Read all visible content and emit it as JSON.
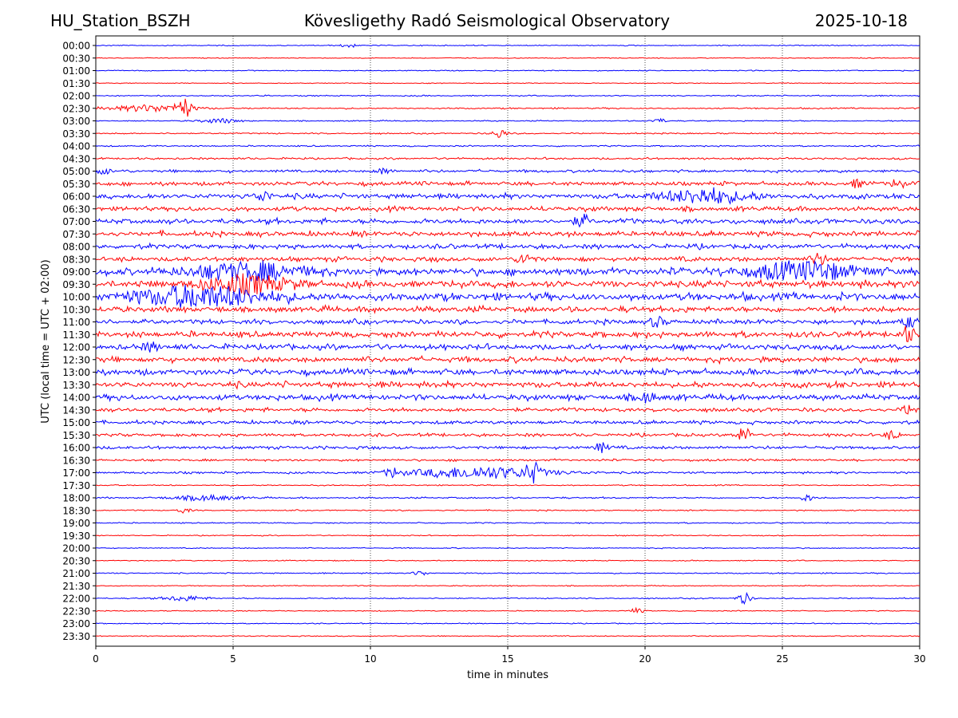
{
  "header": {
    "station": "HU_Station_BSZH",
    "title": "Kövesligethy Radó Seismological Observatory",
    "date": "2025-10-18"
  },
  "chart_data": {
    "type": "line",
    "title": "Kövesligethy Radó Seismological Observatory",
    "xlabel": "time in minutes",
    "ylabel": "UTC (local time = UTC + 02:00)",
    "xlim": [
      0,
      30
    ],
    "xticks": [
      0,
      5,
      10,
      15,
      20,
      25,
      30
    ],
    "xtick_labels": [
      "0",
      "5",
      "10",
      "15",
      "20",
      "25",
      "30"
    ],
    "vertical_gridlines_minutes": [
      5,
      10,
      15,
      20,
      25
    ],
    "grid": "dotted vertical",
    "series_colors": [
      "#0000ff",
      "#ff0000"
    ],
    "rows": [
      "00:00",
      "00:30",
      "01:00",
      "01:30",
      "02:00",
      "02:30",
      "03:00",
      "03:30",
      "04:00",
      "04:30",
      "05:00",
      "05:30",
      "06:00",
      "06:30",
      "07:00",
      "07:30",
      "08:00",
      "08:30",
      "09:00",
      "09:30",
      "10:00",
      "10:30",
      "11:00",
      "11:30",
      "12:00",
      "12:30",
      "13:00",
      "13:30",
      "14:00",
      "14:30",
      "15:00",
      "15:30",
      "16:00",
      "16:30",
      "17:00",
      "17:30",
      "18:00",
      "18:30",
      "19:00",
      "19:30",
      "20:00",
      "20:30",
      "21:00",
      "21:30",
      "22:00",
      "22:30",
      "23:00",
      "23:30"
    ],
    "row_noise_level": [
      0.5,
      0.4,
      0.5,
      0.4,
      0.6,
      0.7,
      0.6,
      0.7,
      0.7,
      1.0,
      1.4,
      2.0,
      2.6,
      2.4,
      2.6,
      2.6,
      2.4,
      2.4,
      3.6,
      3.6,
      3.8,
      3.0,
      2.4,
      3.0,
      2.8,
      2.8,
      3.0,
      3.0,
      3.0,
      2.0,
      1.8,
      1.6,
      1.6,
      1.1,
      1.1,
      0.6,
      0.8,
      0.6,
      0.6,
      0.5,
      0.5,
      0.5,
      0.6,
      0.5,
      0.6,
      0.5,
      0.5,
      0.5
    ],
    "events": [
      {
        "row": "00:00",
        "minute": 9.2,
        "amp": 3
      },
      {
        "row": "02:30",
        "minute": 2.0,
        "amp": 4,
        "width": 1.5
      },
      {
        "row": "02:30",
        "minute": 3.2,
        "amp": 12
      },
      {
        "row": "03:00",
        "minute": 4.5,
        "amp": 3,
        "width": 0.6
      },
      {
        "row": "03:00",
        "minute": 20.5,
        "amp": 3
      },
      {
        "row": "03:30",
        "minute": 14.7,
        "amp": 6
      },
      {
        "row": "05:00",
        "minute": 0.3,
        "amp": 4
      },
      {
        "row": "05:00",
        "minute": 10.5,
        "amp": 4
      },
      {
        "row": "05:30",
        "minute": 27.7,
        "amp": 5
      },
      {
        "row": "05:30",
        "minute": 29.2,
        "amp": 6
      },
      {
        "row": "06:00",
        "minute": 6.1,
        "amp": 7
      },
      {
        "row": "06:00",
        "minute": 22.2,
        "amp": 9,
        "width": 1.5
      },
      {
        "row": "07:00",
        "minute": 17.7,
        "amp": 7
      },
      {
        "row": "08:30",
        "minute": 15.6,
        "amp": 7
      },
      {
        "row": "08:30",
        "minute": 26.3,
        "amp": 8
      },
      {
        "row": "09:00",
        "minute": 5.5,
        "amp": 10,
        "width": 2.0
      },
      {
        "row": "09:00",
        "minute": 25.8,
        "amp": 10,
        "width": 2.0
      },
      {
        "row": "09:30",
        "minute": 5.5,
        "amp": 10,
        "width": 1.5
      },
      {
        "row": "10:00",
        "minute": 3.8,
        "amp": 12,
        "width": 2.5
      },
      {
        "row": "11:00",
        "minute": 20.4,
        "amp": 6
      },
      {
        "row": "11:00",
        "minute": 29.6,
        "amp": 6
      },
      {
        "row": "11:30",
        "minute": 29.6,
        "amp": 9
      },
      {
        "row": "12:00",
        "minute": 2.0,
        "amp": 6
      },
      {
        "row": "14:00",
        "minute": 20.1,
        "amp": 7
      },
      {
        "row": "14:30",
        "minute": 29.6,
        "amp": 6
      },
      {
        "row": "15:30",
        "minute": 23.6,
        "amp": 9
      },
      {
        "row": "15:30",
        "minute": 29.0,
        "amp": 5
      },
      {
        "row": "16:00",
        "minute": 18.4,
        "amp": 6
      },
      {
        "row": "17:00",
        "minute": 14.0,
        "amp": 7,
        "width": 2.5
      },
      {
        "row": "17:00",
        "minute": 15.9,
        "amp": 11
      },
      {
        "row": "17:00",
        "minute": 10.8,
        "amp": 5
      },
      {
        "row": "18:00",
        "minute": 4.0,
        "amp": 3,
        "width": 1.2
      },
      {
        "row": "18:00",
        "minute": 25.9,
        "amp": 4
      },
      {
        "row": "18:30",
        "minute": 3.2,
        "amp": 3
      },
      {
        "row": "21:00",
        "minute": 11.8,
        "amp": 3
      },
      {
        "row": "22:00",
        "minute": 3.2,
        "amp": 3,
        "width": 0.8
      },
      {
        "row": "22:00",
        "minute": 23.6,
        "amp": 7
      },
      {
        "row": "22:30",
        "minute": 19.7,
        "amp": 3
      }
    ]
  }
}
